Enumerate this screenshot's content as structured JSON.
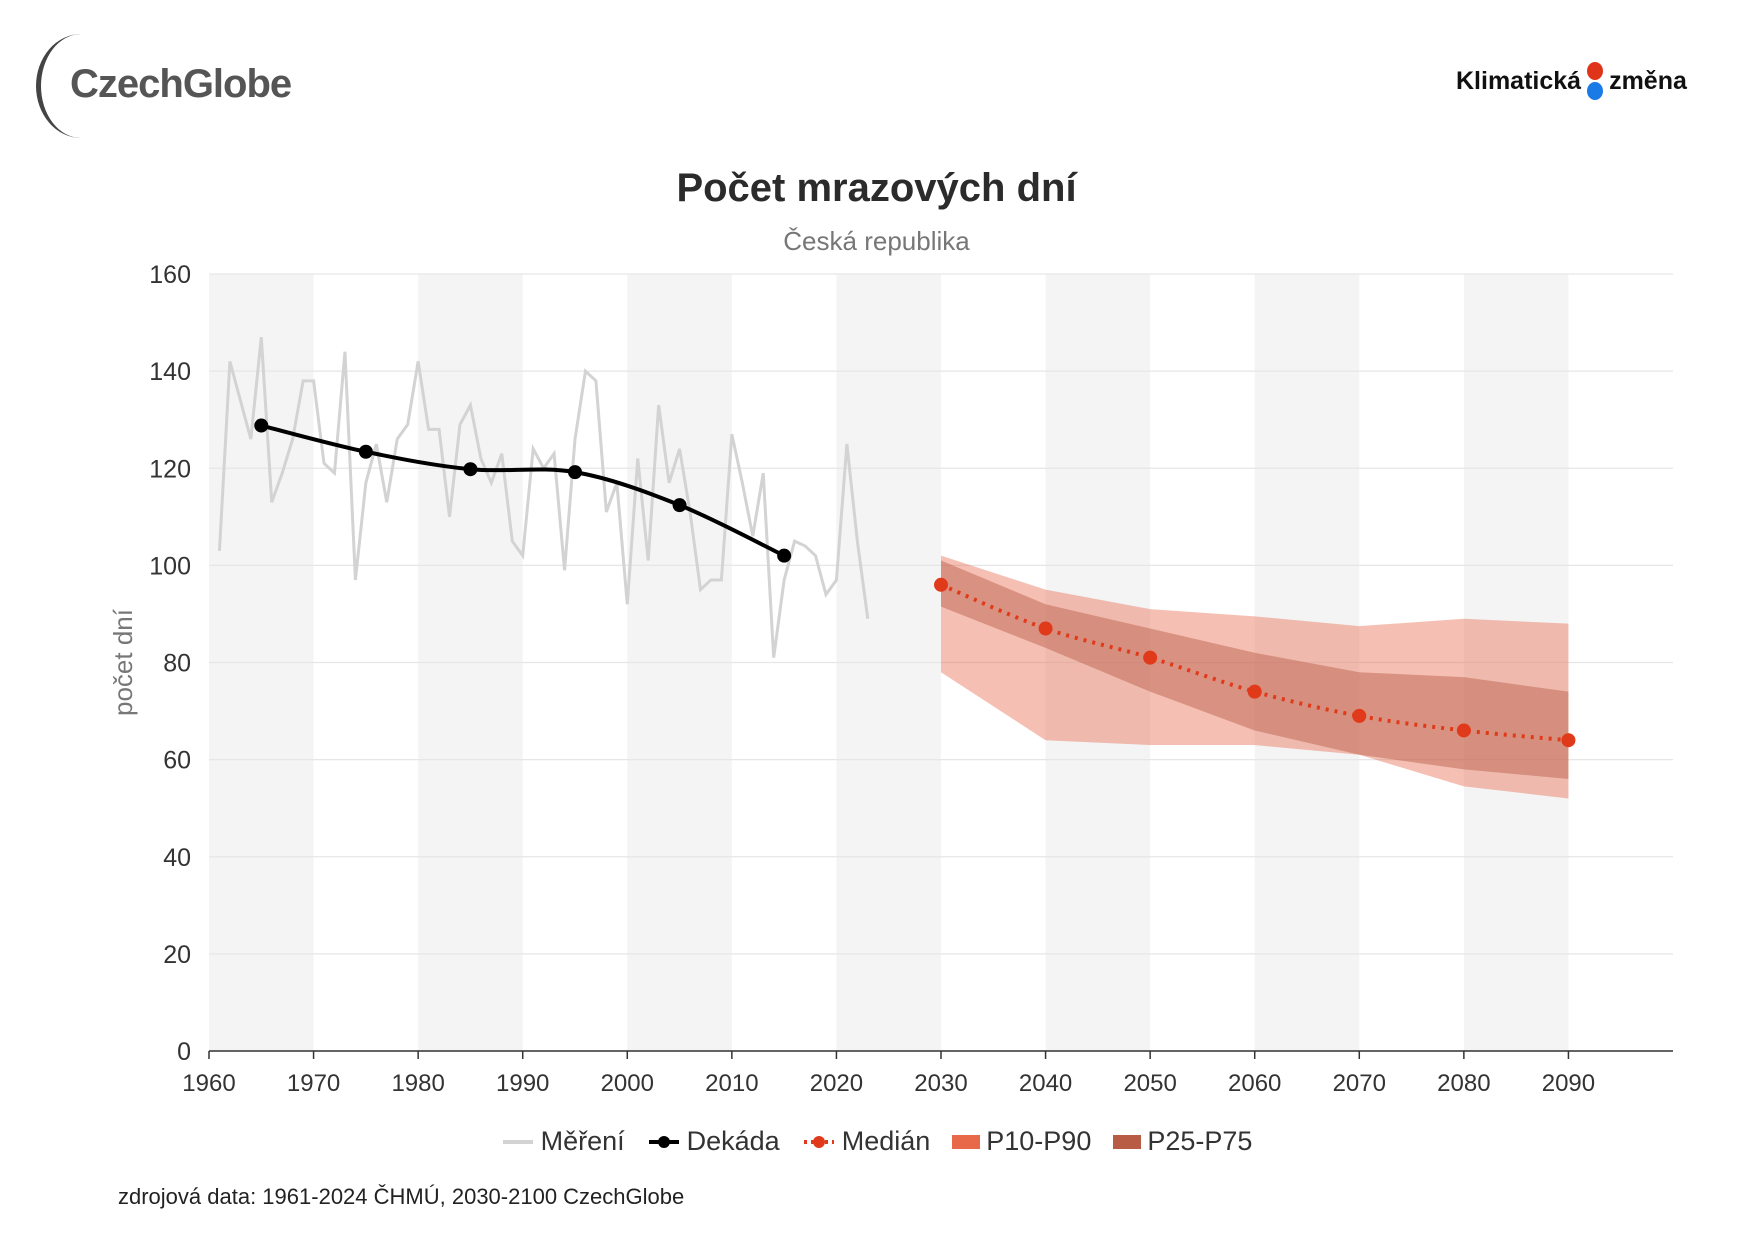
{
  "logos": {
    "left": "CzechGlobe",
    "right_a": "Klimatická",
    "right_b": "změna"
  },
  "colors": {
    "measured": "#d3d3d3",
    "decade": "#000000",
    "median": "#e03a1a",
    "p10p90": "#e8694a",
    "p25p75": "#b85c45",
    "stripe": "#f4f4f4"
  },
  "source": "zdrojová data: 1961-2024 ČHMÚ, 2030-2100 CzechGlobe",
  "chart_data": {
    "type": "line",
    "title": "Počet mrazových dní",
    "subtitle": "Česká republika",
    "xlabel": "",
    "ylabel": "počet dní",
    "xlim": [
      1960,
      2100
    ],
    "ylim": [
      0,
      160
    ],
    "x_ticks": [
      "1960",
      "1970",
      "1980",
      "1990",
      "2000",
      "2010",
      "2020",
      "2030",
      "2040",
      "2050",
      "2060",
      "2070",
      "2080",
      "2090"
    ],
    "y_ticks": [
      "0",
      "20",
      "40",
      "60",
      "80",
      "100",
      "120",
      "140",
      "160"
    ],
    "grid": true,
    "legend_position": "bottom",
    "legend": [
      "Měření",
      "Dekáda",
      "Medián",
      "P10-P90",
      "P25-P75"
    ],
    "measured": {
      "x": [
        1961,
        1962,
        1963,
        1964,
        1965,
        1966,
        1967,
        1968,
        1969,
        1970,
        1971,
        1972,
        1973,
        1974,
        1975,
        1976,
        1977,
        1978,
        1979,
        1980,
        1981,
        1982,
        1983,
        1984,
        1985,
        1986,
        1987,
        1988,
        1989,
        1990,
        1991,
        1992,
        1993,
        1994,
        1995,
        1996,
        1997,
        1998,
        1999,
        2000,
        2001,
        2002,
        2003,
        2004,
        2005,
        2006,
        2007,
        2008,
        2009,
        2010,
        2011,
        2012,
        2013,
        2014,
        2015,
        2016,
        2017,
        2018,
        2019,
        2020,
        2021,
        2022,
        2023
      ],
      "y": [
        103,
        142,
        134,
        126,
        147,
        113,
        119,
        126,
        138,
        138,
        121,
        119,
        144,
        97,
        117,
        125,
        113,
        126,
        129,
        142,
        128,
        128,
        110,
        129,
        133,
        122,
        117,
        123,
        105,
        102,
        124,
        120,
        123,
        99,
        126,
        140,
        138,
        111,
        117,
        92,
        122,
        101,
        133,
        117,
        124,
        111,
        95,
        97,
        97,
        127,
        117,
        106,
        119,
        81,
        97,
        105,
        104,
        102,
        94,
        97,
        125,
        105,
        89
      ]
    },
    "decade": {
      "x": [
        1965,
        1975,
        1985,
        1995,
        2005,
        2015
      ],
      "y": [
        128.8,
        123.4,
        119.8,
        119.2,
        112.4,
        102
      ]
    },
    "projection": {
      "x": [
        2030,
        2040,
        2050,
        2060,
        2070,
        2080,
        2090
      ],
      "median": [
        96,
        87,
        81,
        74,
        69,
        66,
        64
      ],
      "p10": [
        78,
        64,
        63,
        63,
        61,
        54.5,
        52
      ],
      "p90": [
        102,
        95,
        91,
        89.5,
        87.5,
        89,
        88
      ],
      "p25": [
        91.5,
        83,
        74,
        66,
        61,
        58,
        56
      ],
      "p75": [
        101,
        92,
        87,
        82,
        78,
        77,
        74
      ]
    }
  }
}
